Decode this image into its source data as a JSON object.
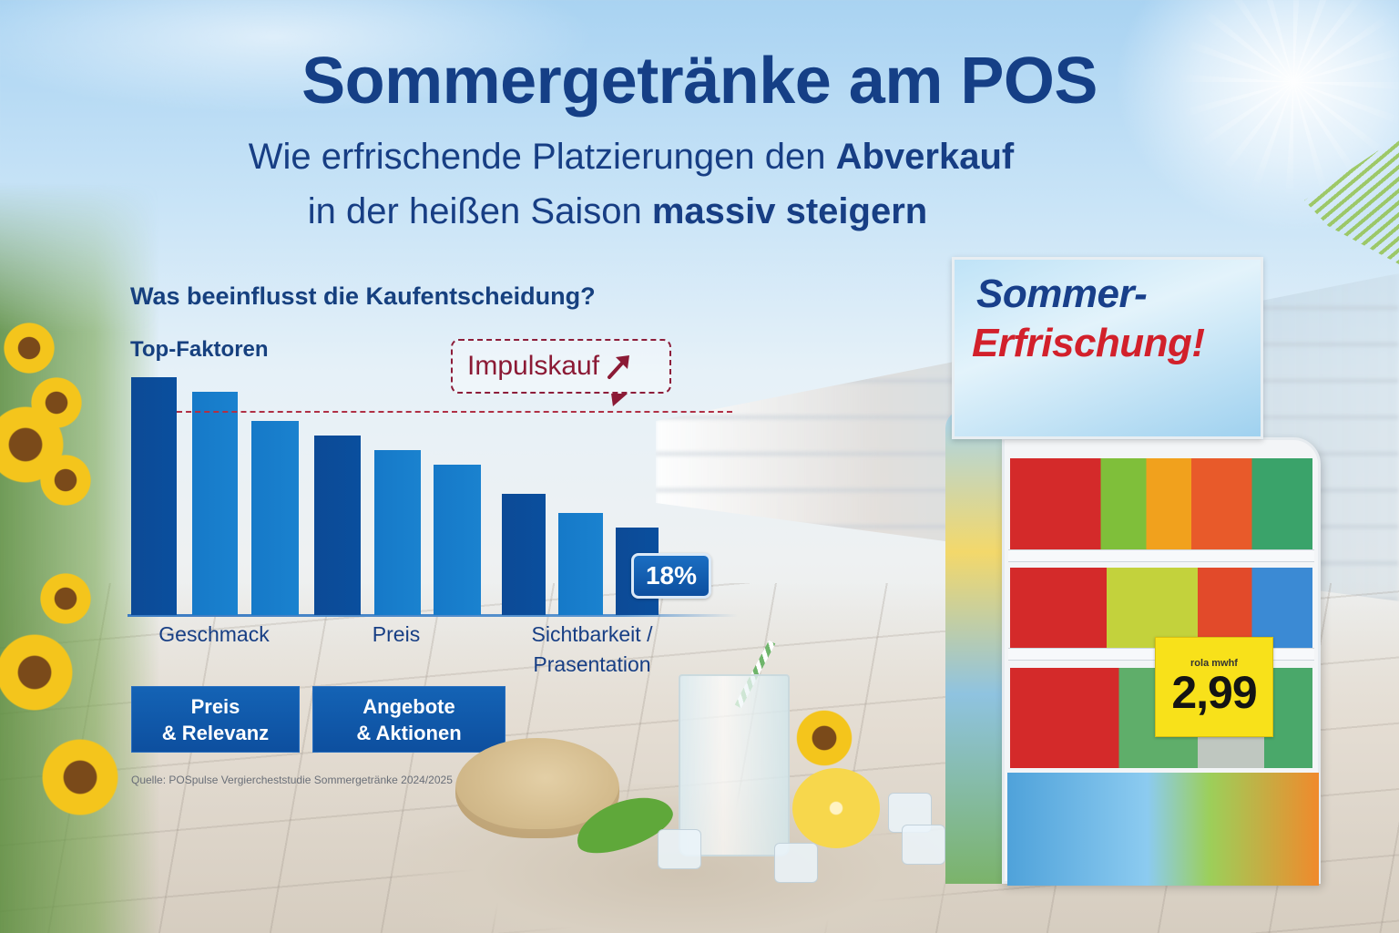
{
  "header": {
    "title": "Sommergetränke am POS",
    "subtitle_line1_regular": "Wie erfrischende Platzierungen den ",
    "subtitle_line1_bold": "Abverkauf",
    "subtitle_line2_regular": "in der heißen Saison ",
    "subtitle_line2_bold": "massiv steigern"
  },
  "chart_section": {
    "question": "Was beeinflusst die Kaufentscheidung?",
    "top_factors_label": "Top-Faktoren",
    "annotation_label": "Impulskauf",
    "annotation_icon": "arrow-up-right-icon",
    "badge_label": "18%"
  },
  "chart_data": {
    "type": "bar",
    "title": "Was beeinflusst die Kaufentscheidung?",
    "subtitle": "Top-Faktoren",
    "categories": [
      "Geschmack",
      "Preis",
      "Sichtbarkeit / Präsentation"
    ],
    "category_labels_display": [
      "Geschmack",
      "Preis",
      "Sichtbarkeit /",
      "Prasentation"
    ],
    "bars_per_category": 3,
    "values": [
      49,
      46,
      40,
      37,
      34,
      31,
      25,
      21,
      18
    ],
    "bar_colors": [
      "#0c4a96",
      "#1679c8",
      "#1679c8",
      "#0c4a96",
      "#1679c8",
      "#1679c8",
      "#0c4a96",
      "#1679c8",
      "#0c4a96"
    ],
    "value_labels": [
      {
        "bar_index": 8,
        "text": "18%"
      }
    ],
    "reference_line": {
      "value": 42,
      "style": "dashed",
      "color": "#b03045",
      "annotation": "Impulskauf"
    },
    "xlabel": "",
    "ylabel": "",
    "ylim": [
      0,
      50
    ],
    "grid": false,
    "legend": null,
    "unit": "%"
  },
  "buttons": [
    {
      "line1": "Preis",
      "line2": "& Relevanz"
    },
    {
      "line1": "Angebote",
      "line2": "& Aktionen"
    }
  ],
  "source": "Quelle: POSpulse Vergiercheststudie Sommergetränke 2024/2025",
  "display_stand": {
    "header_line1": "Sommer-",
    "header_line2": "Erfrischung!",
    "price_sign_small": "rola mwhf",
    "price_sign_price": "2,99"
  },
  "colors": {
    "title_blue": "#153f86",
    "bar_dark": "#0c4a96",
    "bar_light": "#1679c8",
    "accent_red": "#8b1a35",
    "price_yellow": "#f8e11a"
  }
}
